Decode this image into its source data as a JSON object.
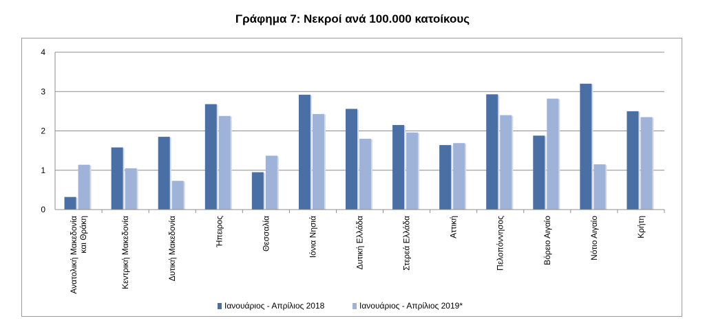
{
  "chart_data": {
    "type": "bar",
    "title": "Γράφημα 7: Νεκροί ανά 100.000 κατοίκους",
    "categories": [
      [
        "Ανατολική Μακεδονία",
        "και Θράκη"
      ],
      [
        "Κεντρική Μακεδονία"
      ],
      [
        "Δυτική Μακεδονία"
      ],
      [
        "Ήπειρος"
      ],
      [
        "Θεσσαλία"
      ],
      [
        "Ιόνια Νησιά"
      ],
      [
        "Δυτική Ελλάδα"
      ],
      [
        "Στερεά Ελλάδα"
      ],
      [
        "Αττική"
      ],
      [
        "Πελοπόννησος"
      ],
      [
        "Βόρειο Αιγαίο"
      ],
      [
        "Νότιο Αιγαίο"
      ],
      [
        "Κρήτη"
      ]
    ],
    "series": [
      {
        "name": "Ιανουάριος - Απρίλιος 2018",
        "color": "#4a6fa5",
        "values": [
          0.32,
          1.58,
          1.85,
          2.68,
          0.95,
          2.92,
          2.56,
          2.15,
          1.64,
          2.93,
          1.88,
          3.2,
          2.5
        ]
      },
      {
        "name": "Ιανουάριος - Απρίλιος 2019*",
        "color": "#9fb3d9",
        "values": [
          1.14,
          1.05,
          0.73,
          2.38,
          1.37,
          2.43,
          1.8,
          1.96,
          1.69,
          2.4,
          2.82,
          1.15,
          2.35
        ]
      }
    ],
    "ylim": [
      0,
      4
    ],
    "yticks": [
      "0",
      "1",
      "2",
      "3",
      "4"
    ],
    "grid": true,
    "legend_position": "bottom"
  }
}
